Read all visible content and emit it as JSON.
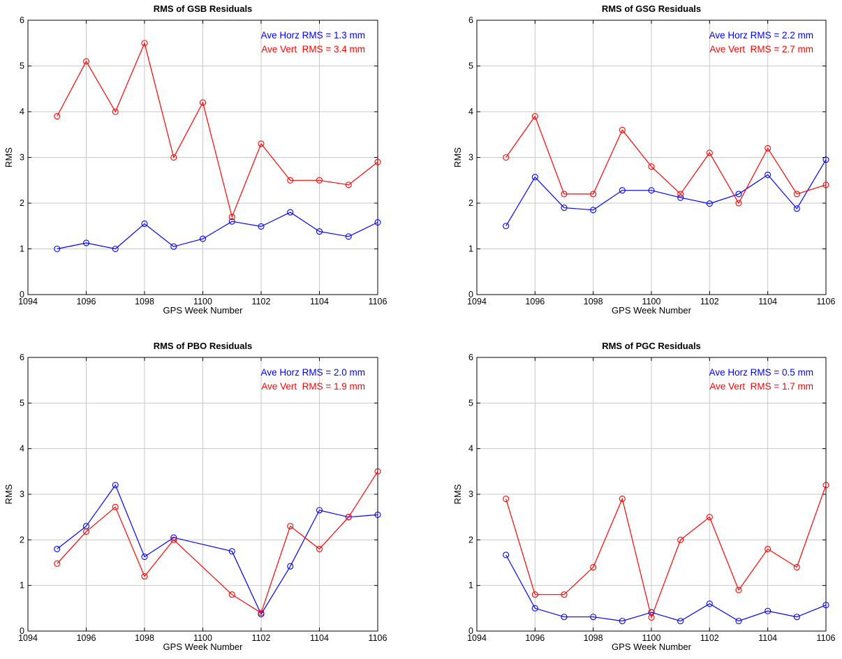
{
  "chart_data": [
    {
      "type": "line",
      "title": "RMS of GSB Residuals",
      "xlabel": "GPS Week Number",
      "ylabel": "RMS",
      "xlim": [
        1094,
        1106
      ],
      "ylim": [
        0,
        6
      ],
      "xticks": [
        1094,
        1096,
        1098,
        1100,
        1102,
        1104,
        1106
      ],
      "yticks": [
        0,
        1,
        2,
        3,
        4,
        5,
        6
      ],
      "grid": true,
      "annotations": [
        {
          "text": "Ave Horz RMS = 1.3 mm",
          "color": "#0000ff"
        },
        {
          "text": "Ave Vert  RMS = 3.4 mm",
          "color": "#ff0000"
        }
      ],
      "series": [
        {
          "color": "#0000ff",
          "marker": "circle",
          "x": [
            1095,
            1096,
            1097,
            1098,
            1099,
            1100,
            1101,
            1102,
            1103,
            1104,
            1105,
            1106
          ],
          "y": [
            1.0,
            1.13,
            1.0,
            1.55,
            1.05,
            1.22,
            1.6,
            1.49,
            1.8,
            1.38,
            1.27,
            1.58
          ]
        },
        {
          "color": "#ff0000",
          "marker": "circle",
          "x": [
            1095,
            1096,
            1097,
            1098,
            1099,
            1100,
            1101,
            1102,
            1103,
            1104,
            1105,
            1106
          ],
          "y": [
            3.9,
            5.1,
            4.0,
            5.5,
            3.0,
            4.2,
            1.7,
            3.3,
            2.5,
            2.5,
            2.4,
            2.9
          ]
        }
      ]
    },
    {
      "type": "line",
      "title": "RMS of GSG Residuals",
      "xlabel": "GPS Week Number",
      "ylabel": "RMS",
      "xlim": [
        1094,
        1106
      ],
      "ylim": [
        0,
        6
      ],
      "xticks": [
        1094,
        1096,
        1098,
        1100,
        1102,
        1104,
        1106
      ],
      "yticks": [
        0,
        1,
        2,
        3,
        4,
        5,
        6
      ],
      "grid": true,
      "annotations": [
        {
          "text": "Ave Horz RMS = 2.2 mm",
          "color": "#0000ff"
        },
        {
          "text": "Ave Vert  RMS = 2.7 mm",
          "color": "#ff0000"
        }
      ],
      "series": [
        {
          "color": "#0000ff",
          "marker": "circle",
          "x": [
            1095,
            1096,
            1097,
            1098,
            1099,
            1100,
            1101,
            1102,
            1103,
            1104,
            1105,
            1106
          ],
          "y": [
            1.5,
            2.57,
            1.9,
            1.85,
            2.28,
            2.28,
            2.12,
            1.99,
            2.2,
            2.62,
            1.88,
            2.95
          ]
        },
        {
          "color": "#ff0000",
          "marker": "circle",
          "x": [
            1095,
            1096,
            1097,
            1098,
            1099,
            1100,
            1101,
            1102,
            1103,
            1104,
            1105,
            1106
          ],
          "y": [
            3.0,
            3.9,
            2.2,
            2.2,
            3.6,
            2.8,
            2.2,
            3.1,
            2.0,
            3.2,
            2.2,
            2.4
          ]
        }
      ]
    },
    {
      "type": "line",
      "title": "RMS of PBO Residuals",
      "xlabel": "GPS Week Number",
      "ylabel": "RMS",
      "xlim": [
        1094,
        1106
      ],
      "ylim": [
        0,
        6
      ],
      "xticks": [
        1094,
        1096,
        1098,
        1100,
        1102,
        1104,
        1106
      ],
      "yticks": [
        0,
        1,
        2,
        3,
        4,
        5,
        6
      ],
      "grid": true,
      "annotations": [
        {
          "text": "Ave Horz RMS = 2.0 mm",
          "color": "#0000ff"
        },
        {
          "text": "Ave Vert  RMS = 1.9 mm",
          "color": "#ff0000"
        }
      ],
      "series": [
        {
          "color": "#0000ff",
          "marker": "circle",
          "x": [
            1095,
            1096,
            1097,
            1098,
            1099,
            1101,
            1102,
            1103,
            1104,
            1105,
            1106
          ],
          "y": [
            1.8,
            2.3,
            3.2,
            1.63,
            2.05,
            1.75,
            0.37,
            1.42,
            2.65,
            2.5,
            2.55
          ]
        },
        {
          "color": "#ff0000",
          "marker": "circle",
          "x": [
            1095,
            1096,
            1097,
            1098,
            1099,
            1101,
            1102,
            1103,
            1104,
            1105,
            1106
          ],
          "y": [
            1.48,
            2.18,
            2.72,
            1.2,
            2.0,
            0.8,
            0.4,
            2.3,
            1.8,
            2.5,
            3.5
          ]
        }
      ]
    },
    {
      "type": "line",
      "title": "RMS of PGC Residuals",
      "xlabel": "GPS Week Number",
      "ylabel": "RMS",
      "xlim": [
        1094,
        1106
      ],
      "ylim": [
        0,
        6
      ],
      "xticks": [
        1094,
        1096,
        1098,
        1100,
        1102,
        1104,
        1106
      ],
      "yticks": [
        0,
        1,
        2,
        3,
        4,
        5,
        6
      ],
      "grid": true,
      "annotations": [
        {
          "text": "Ave Horz RMS = 0.5 mm",
          "color": "#0000ff"
        },
        {
          "text": "Ave Vert  RMS = 1.7 mm",
          "color": "#ff0000"
        }
      ],
      "series": [
        {
          "color": "#0000ff",
          "marker": "circle",
          "x": [
            1095,
            1096,
            1097,
            1098,
            1099,
            1100,
            1101,
            1102,
            1103,
            1104,
            1105,
            1106
          ],
          "y": [
            1.67,
            0.5,
            0.31,
            0.31,
            0.22,
            0.41,
            0.22,
            0.6,
            0.22,
            0.44,
            0.31,
            0.57
          ]
        },
        {
          "color": "#ff0000",
          "marker": "circle",
          "x": [
            1095,
            1096,
            1097,
            1098,
            1099,
            1100,
            1101,
            1102,
            1103,
            1104,
            1105,
            1106
          ],
          "y": [
            2.9,
            0.8,
            0.8,
            1.4,
            2.9,
            0.3,
            2.0,
            2.5,
            0.9,
            1.8,
            1.4,
            3.2
          ]
        }
      ]
    }
  ]
}
